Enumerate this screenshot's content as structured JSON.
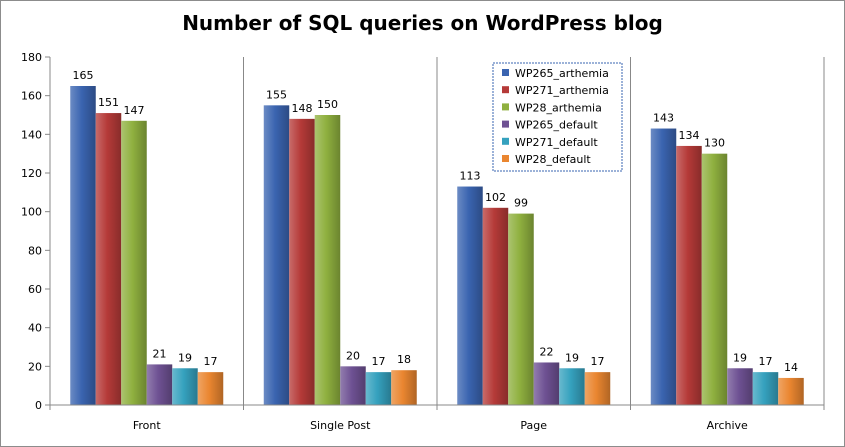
{
  "chart_data": {
    "type": "bar",
    "title": "Number of SQL queries on WordPress blog",
    "xlabel": "",
    "ylabel": "",
    "ylim": [
      0,
      180
    ],
    "yticks": [
      0,
      20,
      40,
      60,
      80,
      100,
      120,
      140,
      160,
      180
    ],
    "grid": "vertical category separators",
    "legend_position": "top-center",
    "categories": [
      "Front",
      "Single Post",
      "Page",
      "Archive"
    ],
    "series": [
      {
        "name": "WP265_arthemia",
        "color": "#3A64B0",
        "values": [
          165,
          155,
          113,
          143
        ]
      },
      {
        "name": "WP271_arthemia",
        "color": "#B53A38",
        "values": [
          151,
          148,
          102,
          134
        ]
      },
      {
        "name": "WP28_arthemia",
        "color": "#8FB03F",
        "values": [
          147,
          150,
          99,
          130
        ]
      },
      {
        "name": "WP265_default",
        "color": "#6E5193",
        "values": [
          21,
          20,
          22,
          19
        ]
      },
      {
        "name": "WP271_default",
        "color": "#35A1BE",
        "values": [
          19,
          17,
          19,
          17
        ]
      },
      {
        "name": "WP28_default",
        "color": "#EA8630",
        "values": [
          17,
          18,
          17,
          14
        ]
      }
    ]
  }
}
